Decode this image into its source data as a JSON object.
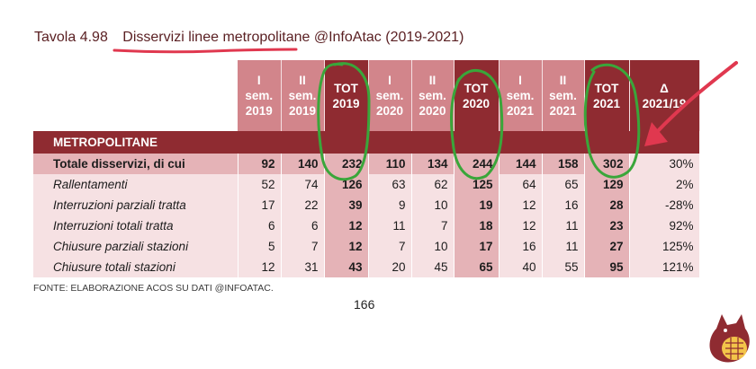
{
  "title": {
    "number": "Tavola 4.98",
    "main": "Disservizi linee metropolitane",
    "suffix": "@InfoAtac (2019-2021)"
  },
  "table": {
    "headers": [
      [
        "I",
        "sem.",
        "2019"
      ],
      [
        "II",
        "sem.",
        "2019"
      ],
      [
        "TOT",
        "2019"
      ],
      [
        "I",
        "sem.",
        "2020"
      ],
      [
        "II",
        "sem.",
        "2020"
      ],
      [
        "TOT",
        "2020"
      ],
      [
        "I",
        "sem.",
        "2021"
      ],
      [
        "II",
        "sem.",
        "2021"
      ],
      [
        "TOT",
        "2021"
      ],
      [
        "Δ",
        "2021/19"
      ]
    ],
    "section": "METROPOLITANE",
    "total_row": {
      "label": "Totale disservizi, di cui",
      "values": [
        "92",
        "140",
        "232",
        "110",
        "134",
        "244",
        "144",
        "158",
        "302",
        "30%"
      ]
    },
    "rows": [
      {
        "label": "Rallentamenti",
        "values": [
          "52",
          "74",
          "126",
          "63",
          "62",
          "125",
          "64",
          "65",
          "129",
          "2%"
        ]
      },
      {
        "label": "Interruzioni parziali tratta",
        "values": [
          "17",
          "22",
          "39",
          "9",
          "10",
          "19",
          "12",
          "16",
          "28",
          "-28%"
        ]
      },
      {
        "label": "Interruzioni totali tratta",
        "values": [
          "6",
          "6",
          "12",
          "11",
          "7",
          "18",
          "12",
          "11",
          "23",
          "92%"
        ]
      },
      {
        "label": "Chiusure parziali stazioni",
        "values": [
          "5",
          "7",
          "12",
          "7",
          "10",
          "17",
          "16",
          "11",
          "27",
          "125%"
        ]
      },
      {
        "label": "Chiusure totali stazioni",
        "values": [
          "12",
          "31",
          "43",
          "20",
          "45",
          "65",
          "40",
          "55",
          "95",
          "121%"
        ]
      }
    ]
  },
  "source": "FONTE: ELABORAZIONE ACOS SU DATI @INFOATAC.",
  "page_number": "166",
  "colors": {
    "header_light": "#d2858b",
    "header_dark": "#8f2b31",
    "row_light": "#f6e1e3",
    "row_mid": "#e5b3b7",
    "annotation_green": "#3aa63a",
    "annotation_red": "#e0384f"
  }
}
